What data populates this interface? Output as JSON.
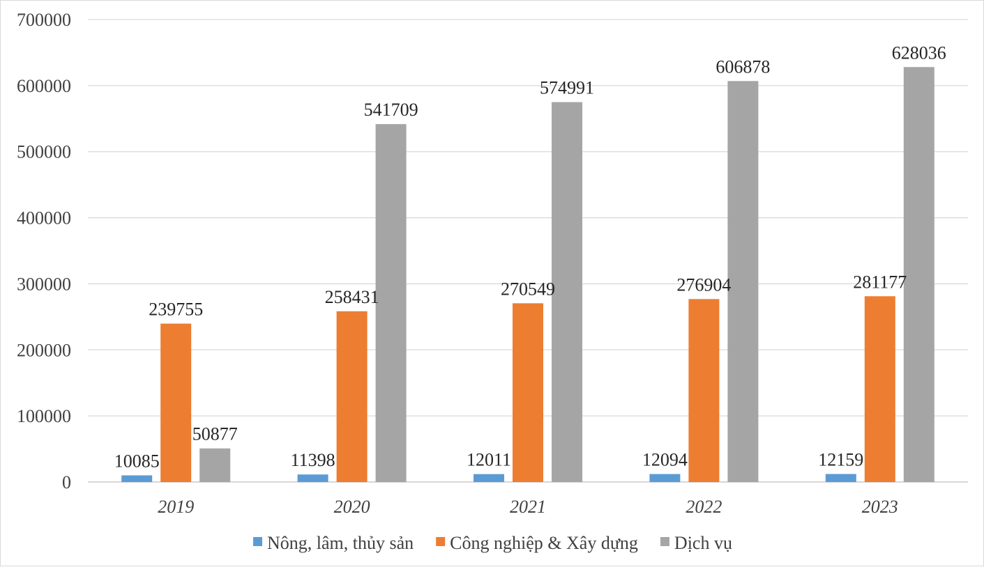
{
  "chart_data": {
    "type": "bar",
    "categories": [
      "2019",
      "2020",
      "2021",
      "2022",
      "2023"
    ],
    "series": [
      {
        "name": "Nông, lâm, thủy sản",
        "color": "#5B9BD5",
        "values": [
          10085,
          11398,
          12011,
          12094,
          12159
        ]
      },
      {
        "name": "Công nghiệp & Xây dựng",
        "color": "#ED7D31",
        "values": [
          239755,
          258431,
          270549,
          276904,
          281177
        ]
      },
      {
        "name": "Dịch vụ",
        "color": "#A5A5A5",
        "values": [
          50877,
          541709,
          574991,
          606878,
          628036
        ]
      }
    ],
    "ylim": [
      0,
      700000
    ],
    "yticks": [
      "0",
      "100000",
      "200000",
      "300000",
      "400000",
      "500000",
      "600000",
      "700000"
    ],
    "grid": true,
    "legend": "bottom",
    "data_labels": true
  }
}
